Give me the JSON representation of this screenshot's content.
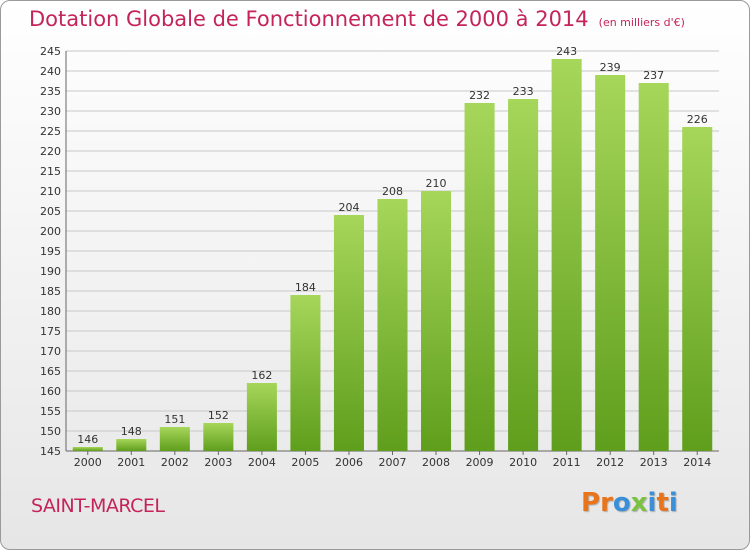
{
  "header": {
    "title": "Dotation Globale de Fonctionnement de 2000 à 2014",
    "subtitle": "(en milliers d'€)"
  },
  "footer": {
    "place": "SAINT-MARCEL",
    "logo": "Proxiti",
    "logo_colors": [
      "#e8741b",
      "#e8741b",
      "#3a8fd9",
      "#7cc242",
      "#3a8fd9",
      "#e8741b",
      "#3a8fd9"
    ]
  },
  "colors": {
    "bar_light": "#a6d65a",
    "bar_dark": "#5f9e1c",
    "text": "#333333",
    "accent": "#c4245a"
  },
  "chart_data": {
    "type": "bar",
    "title": "Dotation Globale de Fonctionnement de 2000 à 2014",
    "subtitle": "(en milliers d'€)",
    "xlabel": "",
    "ylabel": "",
    "categories": [
      "2000",
      "2001",
      "2002",
      "2003",
      "2004",
      "2005",
      "2006",
      "2007",
      "2008",
      "2009",
      "2010",
      "2011",
      "2012",
      "2013",
      "2014"
    ],
    "values": [
      146,
      148,
      151,
      152,
      162,
      184,
      204,
      208,
      210,
      232,
      233,
      243,
      239,
      237,
      226
    ],
    "ylim": [
      145,
      245
    ],
    "ytick_step": 5,
    "grid": true,
    "legend": "none"
  }
}
